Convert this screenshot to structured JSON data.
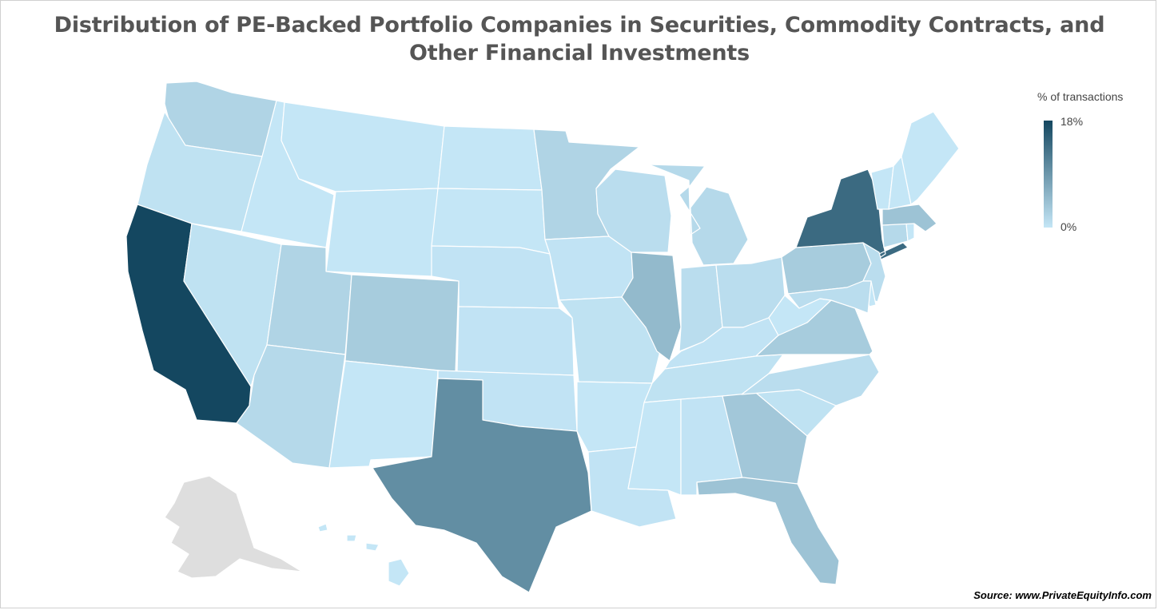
{
  "title": "Distribution of PE-Backed Portfolio Companies in Securities, Commodity Contracts, and Other Financial Investments",
  "legend": {
    "title": "% of transactions",
    "max_label": "18%",
    "min_label": "0%",
    "color_high": "#144760",
    "color_low": "#c4e6f6"
  },
  "colors": {
    "no_data": "#dedede",
    "border": "#ffffff"
  },
  "source": "Source: www.PrivateEquityInfo.com",
  "chart_data": {
    "type": "choropleth",
    "metric": "% of transactions",
    "range": [
      0,
      18
    ],
    "states": [
      {
        "state": "CA",
        "value": 18
      },
      {
        "state": "NY",
        "value": 14
      },
      {
        "state": "TX",
        "value": 10
      },
      {
        "state": "IL",
        "value": 5
      },
      {
        "state": "MA",
        "value": 4
      },
      {
        "state": "FL",
        "value": 4
      },
      {
        "state": "GA",
        "value": 3.5
      },
      {
        "state": "VA",
        "value": 3
      },
      {
        "state": "CO",
        "value": 3
      },
      {
        "state": "PA",
        "value": 3
      },
      {
        "state": "MN",
        "value": 2
      },
      {
        "state": "WA",
        "value": 2
      },
      {
        "state": "UT",
        "value": 2
      },
      {
        "state": "AZ",
        "value": 1.5
      },
      {
        "state": "MI",
        "value": 1.5
      },
      {
        "state": "CT",
        "value": 1.5
      },
      {
        "state": "OH",
        "value": 1
      },
      {
        "state": "NJ",
        "value": 1
      },
      {
        "state": "MD",
        "value": 1
      },
      {
        "state": "NC",
        "value": 1
      },
      {
        "state": "WI",
        "value": 1
      },
      {
        "state": "IN",
        "value": 1
      },
      {
        "state": "MO",
        "value": 0.5
      },
      {
        "state": "OR",
        "value": 0.5
      },
      {
        "state": "NV",
        "value": 0.5
      },
      {
        "state": "TN",
        "value": 0.5
      },
      {
        "state": "SC",
        "value": 0.5
      },
      {
        "state": "OK",
        "value": 0.3
      },
      {
        "state": "KS",
        "value": 0.3
      },
      {
        "state": "NE",
        "value": 0.3
      },
      {
        "state": "IA",
        "value": 0.3
      },
      {
        "state": "KY",
        "value": 0.3
      },
      {
        "state": "AL",
        "value": 0.3
      },
      {
        "state": "LA",
        "value": 0.3
      },
      {
        "state": "ID",
        "value": 0
      },
      {
        "state": "MT",
        "value": 0
      },
      {
        "state": "WY",
        "value": 0
      },
      {
        "state": "ND",
        "value": 0
      },
      {
        "state": "SD",
        "value": 0
      },
      {
        "state": "NM",
        "value": 0
      },
      {
        "state": "AR",
        "value": 0
      },
      {
        "state": "MS",
        "value": 0
      },
      {
        "state": "WV",
        "value": 0
      },
      {
        "state": "ME",
        "value": 0
      },
      {
        "state": "VT",
        "value": 0
      },
      {
        "state": "NH",
        "value": 0
      },
      {
        "state": "RI",
        "value": 0
      },
      {
        "state": "DE",
        "value": 0
      },
      {
        "state": "HI",
        "value": 0
      },
      {
        "state": "AK",
        "value": null
      }
    ]
  }
}
